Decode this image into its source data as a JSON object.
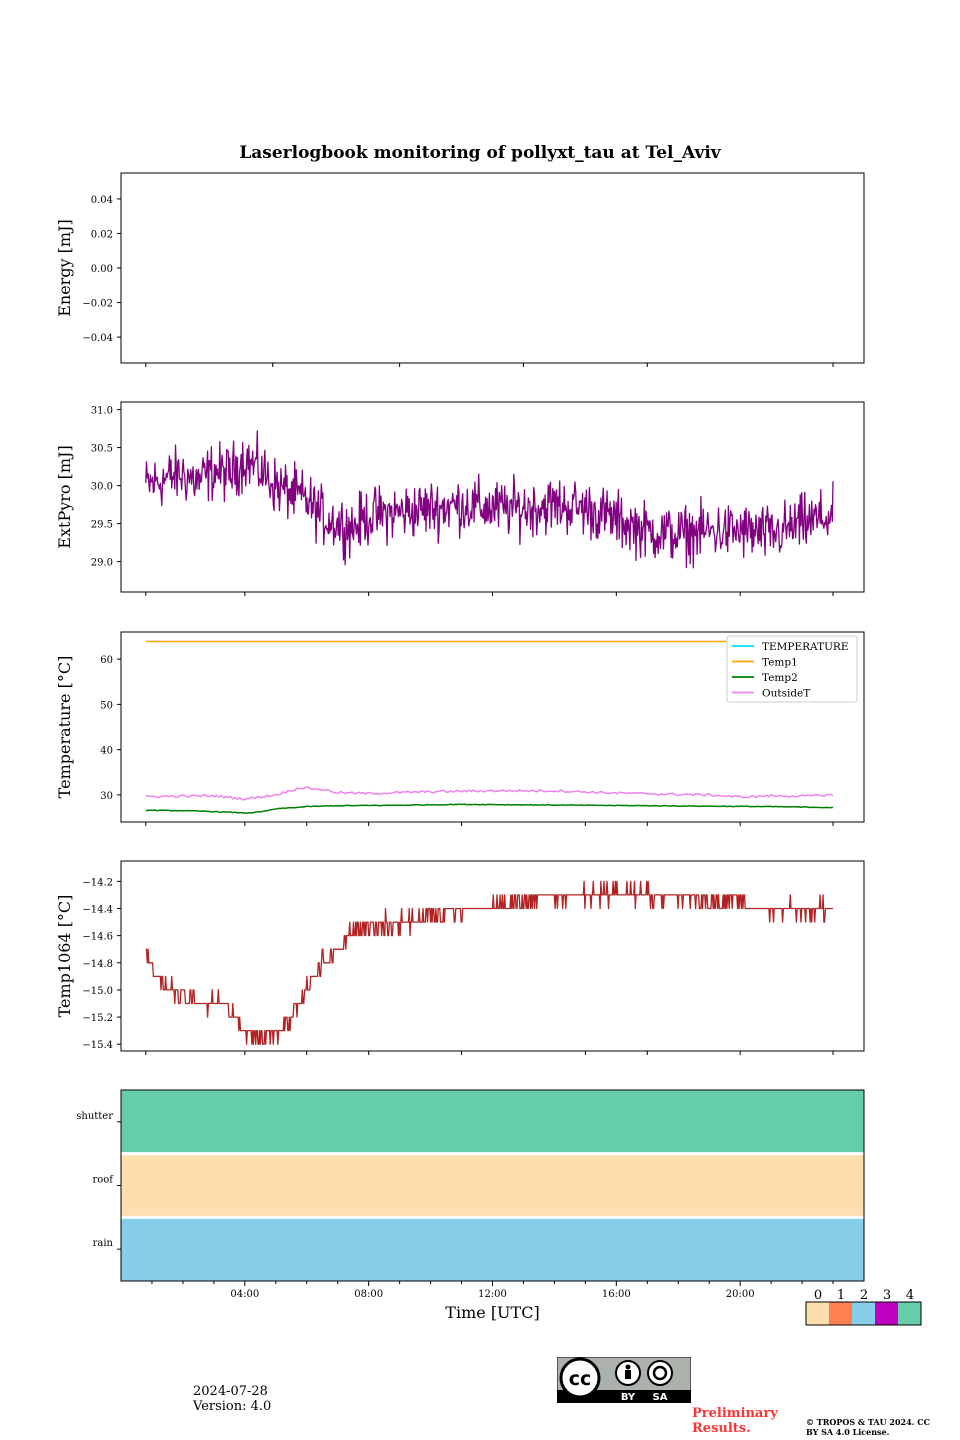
{
  "title": "Laserlogbook monitoring of pollyxt_tau at Tel_Aviv",
  "footer": {
    "date": "2024-07-28",
    "version": "Version: 4.0",
    "preliminary": "Preliminary Results.",
    "copyright": "© TROPOS & TAU 2024. CC BY SA 4.0 License.",
    "license_badge": {
      "by": "BY",
      "sa": "SA",
      "cc": "cc"
    }
  },
  "colors": {
    "extpyro": "#800080",
    "temperature": "#00e5ee",
    "temp1": "#ffa500",
    "temp2": "#008000",
    "outsideT": "#ee82ee",
    "temp1064": "#b22222",
    "status_0": "#fddeaf",
    "status_1": "#ff7f50",
    "status_2": "#87ceeb",
    "status_3": "#c000c0",
    "status_4": "#66cdaa"
  },
  "chart_data": [
    {
      "type": "line",
      "ylabel": "Energy [mJ]",
      "ylim": [
        -0.055,
        0.055
      ],
      "yticks": [
        0.04,
        0.02,
        0.0,
        -0.02,
        -0.04
      ],
      "ytick_labels": [
        "0.04",
        "0.02",
        "0.00",
        "−0.02",
        "−0.04"
      ],
      "series": []
    },
    {
      "type": "line",
      "ylabel": "ExtPyro [mJ]",
      "ylim": [
        28.6,
        31.1
      ],
      "yticks": [
        29.0,
        29.5,
        30.0,
        30.5,
        31.0
      ],
      "ytick_labels": [
        "29.0",
        "29.5",
        "30.0",
        "30.5",
        "31.0"
      ],
      "series": [
        {
          "color_key": "extpyro",
          "x": [
            0.8,
            1.5,
            2.0,
            2.5,
            3.0,
            3.5,
            4.0,
            4.5,
            5.0,
            5.5,
            6.0,
            6.5,
            7.0,
            7.5,
            8.0,
            9.0,
            10.0,
            11.0,
            12.0,
            13.0,
            14.0,
            15.0,
            16.0,
            17.0,
            18.0,
            19.0,
            20.0,
            21.0,
            22.0,
            23.0
          ],
          "y": [
            30.0,
            30.1,
            30.15,
            30.05,
            30.2,
            30.15,
            30.35,
            30.2,
            30.0,
            29.9,
            29.8,
            29.6,
            29.5,
            29.45,
            29.6,
            29.65,
            29.7,
            29.75,
            29.7,
            29.7,
            29.75,
            29.7,
            29.55,
            29.4,
            29.35,
            29.4,
            29.4,
            29.35,
            29.5,
            29.6
          ],
          "noise": 0.28
        }
      ]
    },
    {
      "type": "line",
      "ylabel": "Temperature [°C]",
      "ylim": [
        24,
        66
      ],
      "yticks": [
        30,
        40,
        50,
        60
      ],
      "ytick_labels": [
        "30",
        "40",
        "50",
        "60"
      ],
      "legend": [
        "TEMPERATURE",
        "Temp1",
        "Temp2",
        "OutsideT"
      ],
      "legend_position": "top-right",
      "series": [
        {
          "name": "TEMPERATURE",
          "color_key": "temperature",
          "x": [],
          "y": []
        },
        {
          "name": "Temp1",
          "color_key": "temp1",
          "x": [
            0.8,
            23.0
          ],
          "y": [
            63.9,
            63.9
          ]
        },
        {
          "name": "Temp2",
          "color_key": "temp2",
          "x": [
            0.8,
            2.0,
            3.0,
            4.0,
            4.5,
            5.0,
            6.0,
            7.0,
            9.0,
            11.0,
            13.0,
            15.0,
            17.0,
            19.0,
            21.0,
            22.0,
            23.0
          ],
          "y": [
            26.6,
            26.5,
            26.3,
            26.0,
            26.2,
            26.9,
            27.4,
            27.6,
            27.7,
            27.9,
            27.8,
            27.7,
            27.6,
            27.5,
            27.4,
            27.3,
            27.2
          ]
        },
        {
          "name": "OutsideT",
          "color_key": "outsideT",
          "x": [
            0.8,
            2.0,
            3.0,
            4.0,
            5.0,
            5.8,
            6.5,
            7.0,
            8.0,
            10.0,
            12.0,
            14.0,
            16.0,
            18.0,
            19.0,
            20.0,
            21.0,
            22.0,
            23.0
          ],
          "y": [
            29.6,
            29.7,
            29.8,
            29.1,
            30.0,
            31.6,
            31.2,
            30.5,
            30.3,
            30.7,
            30.9,
            30.9,
            30.4,
            30.1,
            30.0,
            29.5,
            29.8,
            29.7,
            30.0
          ]
        }
      ]
    },
    {
      "type": "line",
      "ylabel": "Temp1064 [°C]",
      "ylim": [
        -15.45,
        -14.05
      ],
      "yticks": [
        -14.2,
        -14.4,
        -14.6,
        -14.8,
        -15.0,
        -15.2,
        -15.4
      ],
      "ytick_labels": [
        "−14.2",
        "−14.4",
        "−14.6",
        "−14.8",
        "−15.0",
        "−15.2",
        "−15.4"
      ],
      "series": [
        {
          "color_key": "temp1064",
          "x": [
            0.8,
            1.0,
            1.5,
            2.0,
            2.5,
            3.0,
            3.5,
            4.0,
            4.5,
            5.0,
            5.5,
            6.0,
            6.5,
            7.0,
            7.5,
            8.0,
            9.0,
            10.0,
            11.0,
            12.0,
            13.0,
            14.0,
            15.0,
            16.0,
            17.0,
            18.0,
            19.0,
            20.0,
            21.0,
            22.0,
            23.0
          ],
          "y": [
            -14.7,
            -14.85,
            -15.0,
            -15.05,
            -15.1,
            -15.1,
            -15.15,
            -15.3,
            -15.35,
            -15.3,
            -15.2,
            -15.0,
            -14.8,
            -14.7,
            -14.55,
            -14.55,
            -14.5,
            -14.45,
            -14.42,
            -14.38,
            -14.35,
            -14.32,
            -14.3,
            -14.28,
            -14.3,
            -14.32,
            -14.33,
            -14.35,
            -14.42,
            -14.42,
            -14.38
          ],
          "noise": 0.05,
          "step": 0.1
        }
      ]
    },
    {
      "type": "heatmap",
      "rows": [
        "shutter",
        "roof",
        "rain"
      ],
      "row_values": [
        4,
        0,
        2
      ],
      "xlabel": "Time [UTC]",
      "xlim": [
        0,
        24
      ],
      "xticks": [
        4,
        8,
        12,
        16,
        20
      ],
      "xtick_labels": [
        "04:00",
        "08:00",
        "12:00",
        "16:00",
        "20:00"
      ],
      "colorbar": {
        "ticks": [
          "0",
          "1",
          "2",
          "3",
          "4"
        ]
      }
    }
  ]
}
